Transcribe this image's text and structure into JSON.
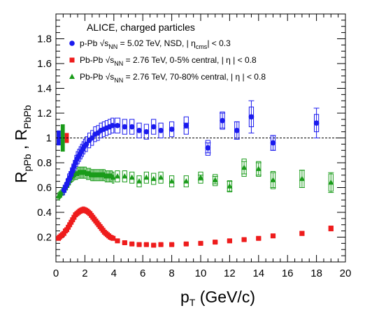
{
  "chart_data": {
    "type": "scatter",
    "title": "ALICE, charged particles",
    "xlabel": {
      "main": "p",
      "sub": "T",
      "tail": " (GeV/c)"
    },
    "ylabel": {
      "a": "R",
      "a_sub": "pPb",
      "sep": " , ",
      "b": "R",
      "b_sub": "PbPb"
    },
    "xlim": [
      0,
      20
    ],
    "ylim": [
      0,
      2.0
    ],
    "x_ticks": [
      0,
      2,
      4,
      6,
      8,
      10,
      12,
      14,
      16,
      18,
      20
    ],
    "y_ticks": [
      0.2,
      0.4,
      0.6,
      0.8,
      1.0,
      1.2,
      1.4,
      1.6,
      1.8
    ],
    "x_tick_labels": [
      "0",
      "2",
      "4",
      "6",
      "8",
      "10",
      "12",
      "14",
      "16",
      "18",
      "20"
    ],
    "y_tick_labels": [
      "0.2",
      "0.4",
      "0.6",
      "0.8",
      "1",
      "1.2",
      "1.4",
      "1.6",
      "1.8"
    ],
    "reference_line": 1.0,
    "normalization_boxes": [
      {
        "series": "p-Pb",
        "y_low": 0.94,
        "y_high": 1.06,
        "color": "#1a1aee"
      },
      {
        "series": "Pb-Pb 70-80%",
        "y_low": 0.89,
        "y_high": 1.11,
        "color": "#1a9b1a"
      },
      {
        "series": "Pb-Pb 0-5%",
        "y_low": 0.96,
        "y_high": 1.04,
        "color": "#ee1c1c"
      }
    ],
    "legend": [
      {
        "series": "p-Pb",
        "parts": [
          "p-Pb",
          "√s",
          "NN",
          "= 5.02 TeV,  NSD, | η",
          "cms",
          "| < 0.3"
        ]
      },
      {
        "series": "Pb-Pb 0-5%",
        "parts": [
          "Pb-Pb",
          "√s",
          "NN",
          "= 2.76 TeV,  0-5% central, | η | < 0.8"
        ]
      },
      {
        "series": "Pb-Pb 70-80%",
        "parts": [
          "Pb-Pb",
          "√s",
          "NN",
          "= 2.76 TeV,  70-80% central, | η | < 0.8"
        ]
      }
    ],
    "series": [
      {
        "key": "p-Pb",
        "color": "#1a1aee",
        "marker": "circle",
        "x": [
          0.55,
          0.65,
          0.75,
          0.85,
          0.95,
          1.05,
          1.15,
          1.25,
          1.35,
          1.45,
          1.55,
          1.65,
          1.75,
          1.85,
          1.95,
          2.1,
          2.3,
          2.5,
          2.7,
          2.9,
          3.1,
          3.3,
          3.5,
          3.7,
          3.9,
          4.25,
          4.75,
          5.25,
          5.75,
          6.25,
          6.75,
          7.25,
          8.0,
          9.0,
          10.5,
          11.5,
          12.5,
          13.5,
          15.0,
          18.0
        ],
        "y": [
          0.58,
          0.6,
          0.63,
          0.66,
          0.68,
          0.71,
          0.74,
          0.77,
          0.8,
          0.83,
          0.85,
          0.87,
          0.89,
          0.91,
          0.93,
          0.95,
          0.98,
          1.0,
          1.03,
          1.04,
          1.06,
          1.07,
          1.08,
          1.09,
          1.1,
          1.1,
          1.09,
          1.09,
          1.06,
          1.05,
          1.09,
          1.06,
          1.07,
          1.1,
          0.92,
          1.14,
          1.06,
          1.17,
          0.96,
          1.12
        ],
        "sys": [
          0.04,
          0.04,
          0.04,
          0.05,
          0.05,
          0.05,
          0.05,
          0.05,
          0.06,
          0.06,
          0.06,
          0.06,
          0.06,
          0.06,
          0.06,
          0.06,
          0.06,
          0.06,
          0.06,
          0.06,
          0.06,
          0.06,
          0.06,
          0.06,
          0.06,
          0.06,
          0.06,
          0.06,
          0.06,
          0.06,
          0.06,
          0.06,
          0.06,
          0.07,
          0.06,
          0.07,
          0.07,
          0.08,
          0.06,
          0.07
        ],
        "stat": [
          0,
          0,
          0,
          0,
          0,
          0,
          0,
          0,
          0,
          0,
          0,
          0,
          0,
          0,
          0,
          0,
          0,
          0,
          0,
          0,
          0,
          0,
          0,
          0,
          0,
          0,
          0,
          0,
          0,
          0,
          0,
          0,
          0,
          0.02,
          0.04,
          0.06,
          0.07,
          0.13,
          0.06,
          0.12
        ]
      },
      {
        "key": "Pb-Pb 0-5%",
        "color": "#ee1c1c",
        "marker": "square",
        "x": [
          0.175,
          0.25,
          0.35,
          0.45,
          0.55,
          0.65,
          0.75,
          0.85,
          0.95,
          1.05,
          1.15,
          1.25,
          1.35,
          1.45,
          1.55,
          1.65,
          1.75,
          1.85,
          1.95,
          2.05,
          2.15,
          2.25,
          2.35,
          2.45,
          2.55,
          2.65,
          2.75,
          2.85,
          2.95,
          3.05,
          3.15,
          3.25,
          3.35,
          3.45,
          3.55,
          3.65,
          3.75,
          3.85,
          3.95,
          4.25,
          4.75,
          5.25,
          5.75,
          6.25,
          6.75,
          7.25,
          8.0,
          9.0,
          10.0,
          11.0,
          12.0,
          13.0,
          14.0,
          15.0,
          17.0,
          19.0
        ],
        "y": [
          0.19,
          0.2,
          0.21,
          0.22,
          0.23,
          0.25,
          0.26,
          0.28,
          0.3,
          0.32,
          0.34,
          0.36,
          0.38,
          0.39,
          0.4,
          0.41,
          0.415,
          0.42,
          0.42,
          0.415,
          0.41,
          0.4,
          0.39,
          0.375,
          0.36,
          0.345,
          0.33,
          0.315,
          0.3,
          0.285,
          0.27,
          0.255,
          0.24,
          0.23,
          0.22,
          0.21,
          0.2,
          0.195,
          0.19,
          0.17,
          0.155,
          0.145,
          0.14,
          0.14,
          0.135,
          0.14,
          0.14,
          0.145,
          0.15,
          0.16,
          0.17,
          0.18,
          0.19,
          0.21,
          0.23,
          0.27
        ],
        "sys": [
          0.015,
          0.015,
          0.015,
          0.015,
          0.015,
          0.018,
          0.018,
          0.02,
          0.02,
          0.02,
          0.02,
          0.022,
          0.022,
          0.022,
          0.022,
          0.024,
          0.024,
          0.024,
          0.024,
          0.024,
          0.024,
          0.023,
          0.023,
          0.022,
          0.022,
          0.021,
          0.02,
          0.02,
          0.02,
          0.018,
          0.017,
          0.016,
          0.015,
          0.015,
          0.014,
          0.013,
          0.013,
          0.012,
          0.012,
          0.011,
          0.01,
          0.01,
          0.01,
          0.01,
          0.01,
          0.01,
          0.01,
          0.01,
          0.01,
          0.011,
          0.012,
          0.013,
          0.014,
          0.015,
          0.017,
          0.02
        ],
        "stat": [
          0,
          0,
          0,
          0,
          0,
          0,
          0,
          0,
          0,
          0,
          0,
          0,
          0,
          0,
          0,
          0,
          0,
          0,
          0,
          0,
          0,
          0,
          0,
          0,
          0,
          0,
          0,
          0,
          0,
          0,
          0,
          0,
          0,
          0,
          0,
          0,
          0,
          0,
          0,
          0,
          0,
          0,
          0,
          0,
          0,
          0,
          0,
          0,
          0,
          0,
          0,
          0,
          0,
          0,
          0,
          0
        ]
      },
      {
        "key": "Pb-Pb 70-80%",
        "color": "#1a9b1a",
        "marker": "triangle",
        "x": [
          0.175,
          0.25,
          0.35,
          0.45,
          0.55,
          0.65,
          0.75,
          0.85,
          0.95,
          1.05,
          1.15,
          1.25,
          1.35,
          1.45,
          1.55,
          1.65,
          1.75,
          1.85,
          1.95,
          2.05,
          2.15,
          2.25,
          2.35,
          2.45,
          2.55,
          2.65,
          2.75,
          2.85,
          2.95,
          3.05,
          3.15,
          3.25,
          3.35,
          3.45,
          3.55,
          3.65,
          3.75,
          3.85,
          3.95,
          4.25,
          4.75,
          5.25,
          5.75,
          6.25,
          6.75,
          7.25,
          8.0,
          9.0,
          10.0,
          11.0,
          12.0,
          13.0,
          14.0,
          15.0,
          17.0,
          19.0
        ],
        "y": [
          0.53,
          0.54,
          0.55,
          0.57,
          0.58,
          0.6,
          0.62,
          0.64,
          0.66,
          0.68,
          0.69,
          0.7,
          0.71,
          0.71,
          0.72,
          0.72,
          0.72,
          0.72,
          0.72,
          0.72,
          0.71,
          0.71,
          0.71,
          0.7,
          0.7,
          0.7,
          0.7,
          0.7,
          0.7,
          0.7,
          0.7,
          0.7,
          0.7,
          0.69,
          0.69,
          0.69,
          0.69,
          0.69,
          0.68,
          0.69,
          0.69,
          0.68,
          0.65,
          0.68,
          0.67,
          0.68,
          0.65,
          0.65,
          0.68,
          0.66,
          0.61,
          0.76,
          0.75,
          0.66,
          0.67,
          0.64
        ],
        "sys": [
          0.03,
          0.03,
          0.03,
          0.03,
          0.035,
          0.035,
          0.04,
          0.04,
          0.04,
          0.04,
          0.04,
          0.04,
          0.045,
          0.045,
          0.045,
          0.045,
          0.045,
          0.045,
          0.045,
          0.045,
          0.045,
          0.045,
          0.045,
          0.045,
          0.045,
          0.045,
          0.045,
          0.045,
          0.045,
          0.045,
          0.045,
          0.045,
          0.045,
          0.045,
          0.045,
          0.045,
          0.045,
          0.045,
          0.045,
          0.045,
          0.045,
          0.045,
          0.045,
          0.045,
          0.045,
          0.045,
          0.045,
          0.045,
          0.045,
          0.045,
          0.045,
          0.07,
          0.06,
          0.07,
          0.07,
          0.07
        ],
        "stat": [
          0,
          0,
          0,
          0,
          0,
          0,
          0,
          0,
          0,
          0,
          0,
          0,
          0,
          0,
          0,
          0,
          0,
          0,
          0,
          0,
          0,
          0,
          0,
          0,
          0,
          0,
          0,
          0,
          0,
          0,
          0,
          0,
          0,
          0,
          0,
          0,
          0,
          0,
          0,
          0,
          0,
          0,
          0,
          0,
          0,
          0,
          0,
          0,
          0.02,
          0.03,
          0.04,
          0.05,
          0.05,
          0.06,
          0.07,
          0.08
        ]
      }
    ]
  }
}
